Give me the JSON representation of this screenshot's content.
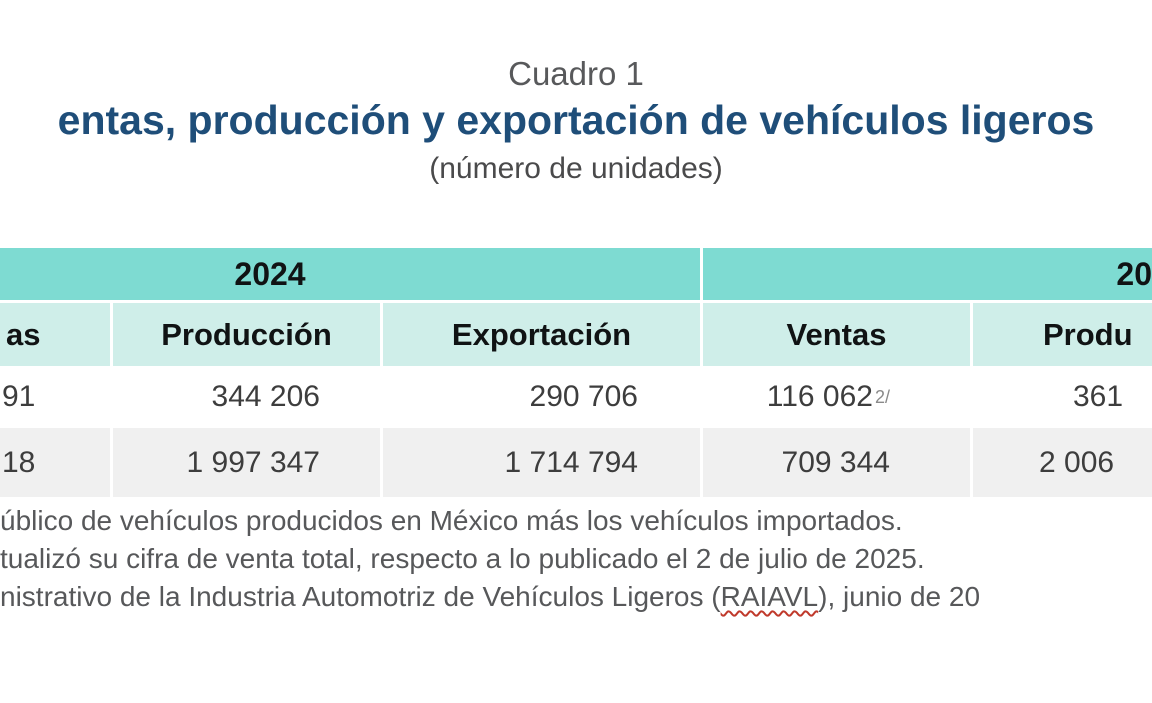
{
  "header": {
    "caption": "Cuadro 1",
    "title_fragment": "entas, producción y exportación de vehículos ligeros",
    "subtitle": "(número de unidades)"
  },
  "table": {
    "year_groups": {
      "g2024": "2024",
      "g2025_fragment": "20"
    },
    "columns": {
      "ventas2024_fragment": "as",
      "produccion2024": "Producción",
      "exportacion2024": "Exportación",
      "ventas2025": "Ventas",
      "produccion2025_fragment": "Produ"
    },
    "rows": [
      {
        "ventas2024_fragment": "91",
        "produccion2024": "344 206",
        "exportacion2024": "290 706",
        "ventas2025": "116 062",
        "ventas2025_sup": "2/",
        "produccion2025_fragment": "361"
      },
      {
        "ventas2024_fragment": "18",
        "produccion2024": "1 997 347",
        "exportacion2024": "1 714 794",
        "ventas2025": "709 344",
        "produccion2025_fragment": "2 006"
      }
    ]
  },
  "footnotes": {
    "line1": "úblico de vehículos producidos en México más los vehículos importados.",
    "line2": "tualizó su cifra de venta total, respecto a lo publicado el 2 de julio de 2025.",
    "line3_pre": "nistrativo de la Industria Automotriz de Vehículos Ligeros (",
    "line3_misspelled": "RAIAVL",
    "line3_post": "), junio de 20"
  },
  "colors": {
    "title_blue": "#1f4e79",
    "band_teal": "#7edbd2",
    "header_teal_light": "#cfeee9",
    "row_alt_gray": "#f0f0f0",
    "text_gray": "#58595b",
    "squiggle_red": "#c0392b"
  }
}
